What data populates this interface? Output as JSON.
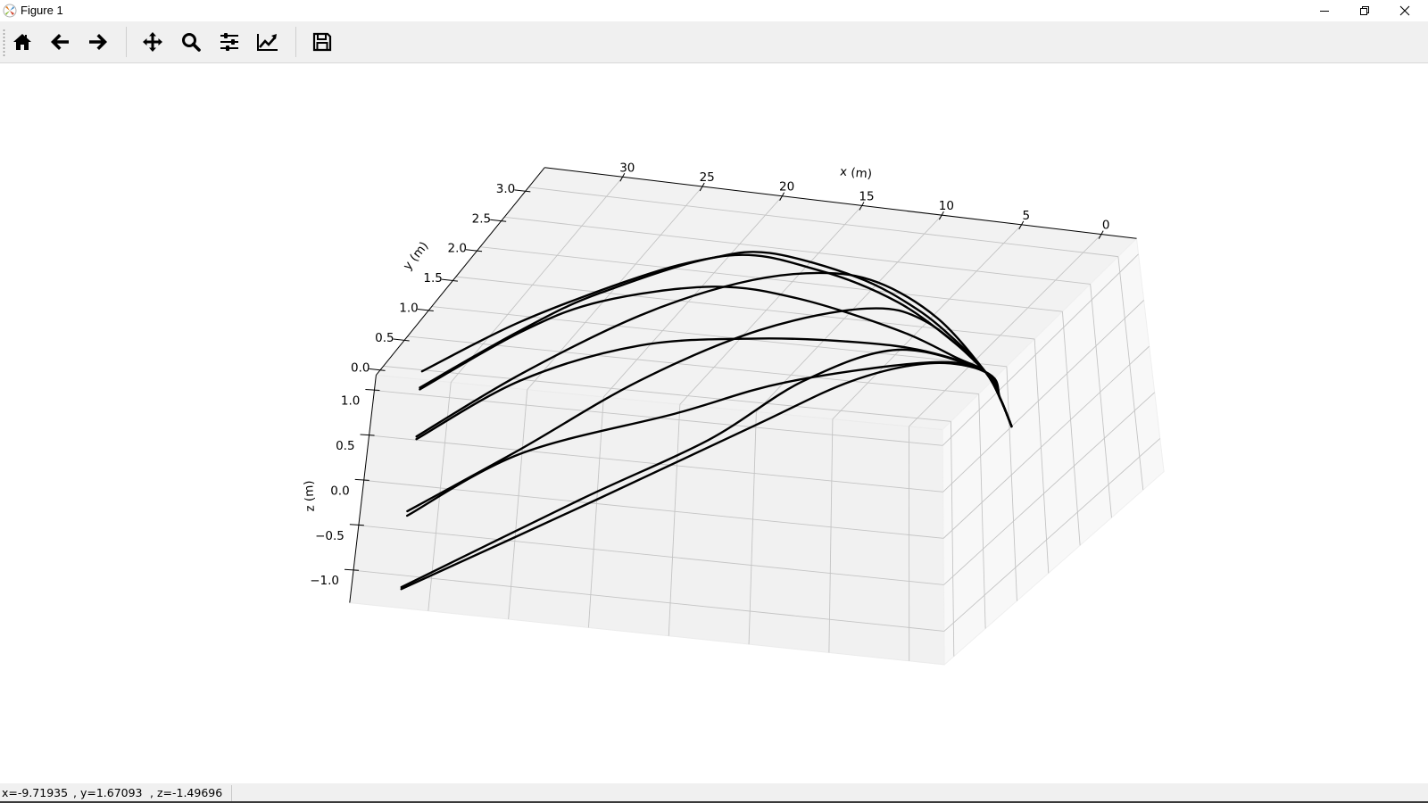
{
  "window": {
    "title": "Figure 1",
    "app_icon": "matplotlib-icon",
    "controls": [
      "minimize-icon",
      "restore-icon",
      "close-icon"
    ]
  },
  "toolbar": {
    "buttons": [
      {
        "icon": "home-icon"
      },
      {
        "icon": "back-arrow-icon"
      },
      {
        "icon": "forward-arrow-icon"
      },
      {
        "icon": "pan-move-icon"
      },
      {
        "icon": "zoom-magnifier-icon"
      },
      {
        "icon": "subplots-sliders-icon"
      },
      {
        "icon": "edit-axis-chart-icon"
      },
      {
        "icon": "save-floppy-icon"
      }
    ]
  },
  "status": {
    "x": "x=-9.71935",
    "y": ", y=1.67093",
    "z": ", z=-1.49696"
  },
  "chart_data": {
    "type": "line",
    "projection": "3d",
    "xlabel": "x (m)",
    "ylabel": "y (m)",
    "zlabel": "z (m)",
    "xlim": [
      -2.2,
      34.9
    ],
    "ylim": [
      -0.15,
      3.33
    ],
    "zlim": [
      -1.36,
      1.17
    ],
    "xticks": [
      0,
      5,
      10,
      15,
      20,
      25,
      30
    ],
    "xtick_labels": [
      "0",
      "5",
      "10",
      "15",
      "20",
      "25",
      "30"
    ],
    "yticks": [
      0,
      0.5,
      1.0,
      1.5,
      2.0,
      2.5,
      3.0
    ],
    "ytick_labels": [
      "0.0",
      "0.5",
      "1.0",
      "1.5",
      "2.0",
      "2.5",
      "3.0"
    ],
    "zticks": [
      -1.0,
      -0.5,
      0.0,
      0.5,
      1.0
    ],
    "ztick_labels": [
      "−1.0",
      "−0.5",
      "0.0",
      "0.5",
      "1.0"
    ],
    "grid": true,
    "line_color": "#000000",
    "pane_color": "#f2f2f2",
    "series": [
      {
        "points": [
          [
            31.8,
            0.91,
            0.48
          ],
          [
            26.5,
            1.05,
            1.04
          ],
          [
            20.1,
            1.24,
            1.54
          ],
          [
            16.2,
            1.36,
            1.75
          ],
          [
            13.1,
            1.46,
            1.8
          ],
          [
            8.4,
            1.63,
            1.52
          ],
          [
            5.2,
            1.76,
            1.15
          ],
          [
            3.0,
            1.85,
            0.77
          ],
          [
            1.5,
            1.92,
            0.43
          ],
          [
            0.7,
            1.96,
            0.13
          ],
          [
            0.1,
            2.0,
            -0.19
          ]
        ]
      },
      {
        "points": [
          [
            31.9,
            0.91,
            0.3
          ],
          [
            26.5,
            1.06,
            0.94
          ],
          [
            22.2,
            1.18,
            1.36
          ],
          [
            15.4,
            1.39,
            1.77
          ],
          [
            10.5,
            1.56,
            1.6
          ],
          [
            6.2,
            1.72,
            1.23
          ],
          [
            3.0,
            1.85,
            0.74
          ],
          [
            1.5,
            1.92,
            0.43
          ],
          [
            0.7,
            1.96,
            0.13
          ],
          [
            0.1,
            2.0,
            -0.19
          ]
        ]
      },
      {
        "points": [
          [
            31.9,
            0.91,
            0.28
          ],
          [
            26.5,
            1.06,
            0.92
          ],
          [
            22.2,
            1.19,
            1.26
          ],
          [
            16.2,
            1.38,
            1.42
          ],
          [
            11.6,
            1.54,
            1.28
          ],
          [
            6.2,
            1.74,
            0.91
          ],
          [
            3.0,
            1.86,
            0.59
          ],
          [
            1.5,
            1.92,
            0.43
          ],
          [
            0.7,
            1.96,
            0.13
          ],
          [
            0.1,
            2.0,
            -0.19
          ]
        ]
      },
      {
        "points": [
          [
            32.1,
            0.94,
            -0.26
          ],
          [
            26.5,
            1.09,
            0.44
          ],
          [
            20.1,
            1.26,
            1.1
          ],
          [
            14.8,
            1.42,
            1.46
          ],
          [
            10.5,
            1.56,
            1.57
          ],
          [
            7.3,
            1.67,
            1.46
          ],
          [
            4.1,
            1.8,
            1.05
          ],
          [
            1.5,
            1.92,
            0.43
          ],
          [
            0.7,
            1.96,
            0.13
          ],
          [
            0.1,
            2.0,
            -0.19
          ]
        ]
      },
      {
        "points": [
          [
            32.1,
            0.94,
            -0.29
          ],
          [
            26.5,
            1.09,
            0.37
          ],
          [
            20.1,
            1.28,
            0.76
          ],
          [
            13.7,
            1.49,
            0.83
          ],
          [
            8.4,
            1.67,
            0.78
          ],
          [
            4.7,
            1.8,
            0.67
          ],
          [
            1.5,
            1.92,
            0.43
          ],
          [
            0.7,
            1.96,
            0.13
          ],
          [
            0.1,
            2.0,
            -0.19
          ]
        ]
      },
      {
        "points": [
          [
            32.6,
            0.97,
            -1.11
          ],
          [
            26.5,
            1.13,
            -0.41
          ],
          [
            20.1,
            1.3,
            0.36
          ],
          [
            13.7,
            1.49,
            0.92
          ],
          [
            7.9,
            1.67,
            1.16
          ],
          [
            4.7,
            1.78,
            1.01
          ],
          [
            1.5,
            1.92,
            0.43
          ],
          [
            0.7,
            1.96,
            0.13
          ],
          [
            0.1,
            2.0,
            -0.19
          ]
        ]
      },
      {
        "points": [
          [
            32.6,
            0.97,
            -1.16
          ],
          [
            26.5,
            1.13,
            -0.46
          ],
          [
            18.2,
            1.39,
            -0.02
          ],
          [
            12.2,
            1.57,
            0.33
          ],
          [
            4.5,
            1.82,
            0.54
          ],
          [
            1.5,
            1.92,
            0.43
          ],
          [
            0.7,
            1.96,
            0.13
          ],
          [
            0.1,
            2.0,
            -0.19
          ]
        ]
      },
      {
        "points": [
          [
            32.9,
            1.0,
            -1.97
          ],
          [
            23.3,
            1.27,
            -0.99
          ],
          [
            16.4,
            1.46,
            -0.32
          ],
          [
            11.3,
            1.6,
            0.34
          ],
          [
            6.2,
            1.75,
            0.69
          ],
          [
            1.5,
            1.92,
            0.43
          ],
          [
            0.7,
            1.96,
            0.13
          ],
          [
            0.1,
            2.0,
            -0.19
          ]
        ]
      },
      {
        "points": [
          [
            32.9,
            1.0,
            -1.99
          ],
          [
            22.4,
            1.3,
            -0.99
          ],
          [
            13.9,
            1.54,
            -0.16
          ],
          [
            8.7,
            1.68,
            0.34
          ],
          [
            4.5,
            1.82,
            0.53
          ],
          [
            1.5,
            1.92,
            0.43
          ],
          [
            0.7,
            1.96,
            0.13
          ],
          [
            0.1,
            2.0,
            -0.19
          ]
        ]
      }
    ]
  }
}
